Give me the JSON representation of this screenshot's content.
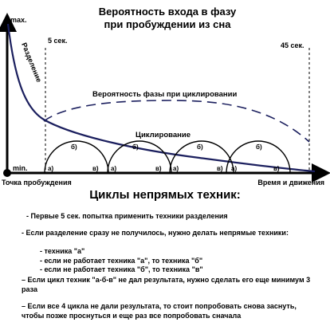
{
  "title": {
    "line1": "Вероятность входа в фазу",
    "line2": "при пробуждении из сна"
  },
  "axis": {
    "max": "max.",
    "min": "min.",
    "origin_label": "Точка пробуждения",
    "x_label": "Время и движения"
  },
  "markers": {
    "left": "5 сек.",
    "right": "45 сек."
  },
  "curves": {
    "separation": "Разделение",
    "phase_probability": "Вероятность фазы при циклировании",
    "cycling": "Циклирование"
  },
  "arcs": [
    {
      "a": "а)",
      "b": "б)",
      "v": "в)"
    },
    {
      "a": "а)",
      "b": "б)",
      "v": "в)"
    },
    {
      "a": "а)",
      "b": "б)",
      "v": "в)"
    },
    {
      "a": "а)",
      "b": "б)",
      "v": "в)"
    }
  ],
  "section": {
    "title": "Циклы непрямых техник:"
  },
  "notes": {
    "n1": "- Первые 5 сек. попытка применить техники разделения",
    "n2": "- Если разделение сразу не получилось, нужно делать непрямые техники:",
    "sub": [
      "- техника \"а\"",
      "- если не работает техника \"а\", то техника \"б\"",
      "- если не работает техника \"б\", то техника \"в\""
    ],
    "n3": "– Если цикл техник \"а-б-в\" не дал результата, нужно сделать его еще минимум 3 раза",
    "n4": "– Если все 4 цикла не дали результата, то стоит попробовать снова заснуть, чтобы позже проснуться и еще раз все попробовать сначала"
  },
  "colors": {
    "curve": "#1b1f5e",
    "line": "#000000"
  }
}
